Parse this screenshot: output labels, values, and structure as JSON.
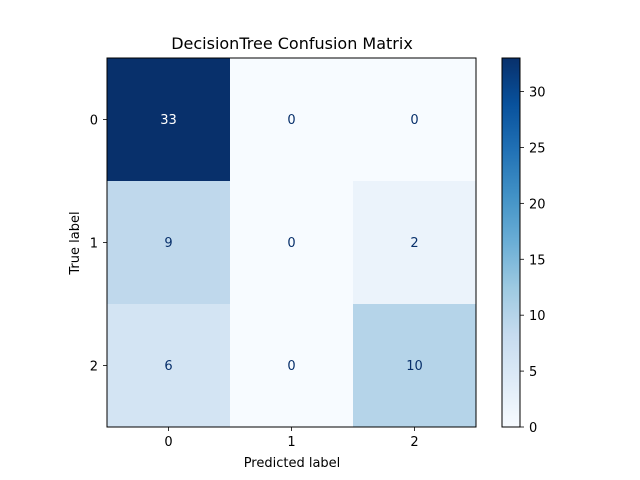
{
  "chart_data": {
    "type": "heatmap",
    "title": "DecisionTree Confusion Matrix",
    "xlabel": "Predicted label",
    "ylabel": "True label",
    "x_categories": [
      "0",
      "1",
      "2"
    ],
    "y_categories": [
      "0",
      "1",
      "2"
    ],
    "values": [
      [
        33,
        0,
        0
      ],
      [
        9,
        0,
        2
      ],
      [
        6,
        0,
        10
      ]
    ],
    "colormap": "Blues",
    "colormap_stops": [
      "#f7fbff",
      "#deebf7",
      "#c6dbef",
      "#9ecae1",
      "#6baed6",
      "#4292c6",
      "#2171b5",
      "#08519c",
      "#08306b"
    ],
    "vmin": 0,
    "vmax": 33,
    "colorbar_ticks": [
      0,
      5,
      10,
      15,
      20,
      25,
      30
    ],
    "text_color_light": "#ffffff",
    "text_color_dark": "#08306b",
    "grid": false
  }
}
